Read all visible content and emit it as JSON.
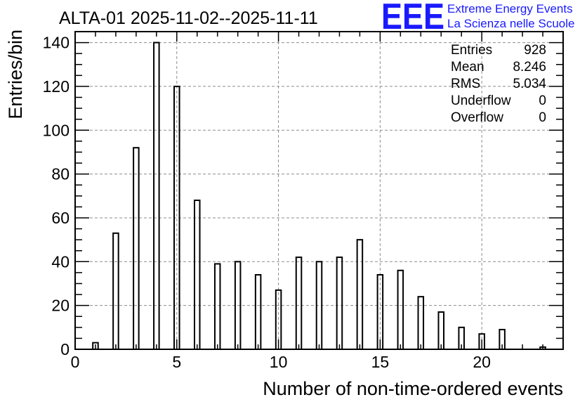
{
  "chart_data": {
    "type": "bar",
    "title": "ALTA-01 2025-11-02--2025-11-11",
    "xlabel": "Number of non-time-ordered events",
    "ylabel": "Entries/bin",
    "xlim": [
      0,
      24
    ],
    "ylim": [
      0,
      145
    ],
    "x_ticks": [
      0,
      5,
      10,
      15,
      20
    ],
    "y_ticks": [
      0,
      20,
      40,
      60,
      80,
      100,
      120,
      140
    ],
    "grid": true,
    "x": [
      1,
      2,
      3,
      4,
      5,
      6,
      7,
      8,
      9,
      10,
      11,
      12,
      13,
      14,
      15,
      16,
      17,
      18,
      19,
      20,
      21,
      22,
      23
    ],
    "values": [
      3,
      53,
      92,
      140,
      120,
      68,
      39,
      40,
      34,
      27,
      42,
      40,
      42,
      50,
      34,
      36,
      24,
      17,
      10,
      7,
      9,
      0,
      1
    ],
    "stats": [
      {
        "label": "Entries",
        "value": "928"
      },
      {
        "label": "Mean",
        "value": "8.246"
      },
      {
        "label": "RMS",
        "value": "5.034"
      },
      {
        "label": "Underflow",
        "value": "0"
      },
      {
        "label": "Overflow",
        "value": "0"
      }
    ],
    "stats_placement": "top-right"
  },
  "logo": {
    "mark": "EEE",
    "line1": "Extreme Energy Events",
    "line2": "La Scienza nelle Scuole",
    "color": "#1a1aff"
  }
}
